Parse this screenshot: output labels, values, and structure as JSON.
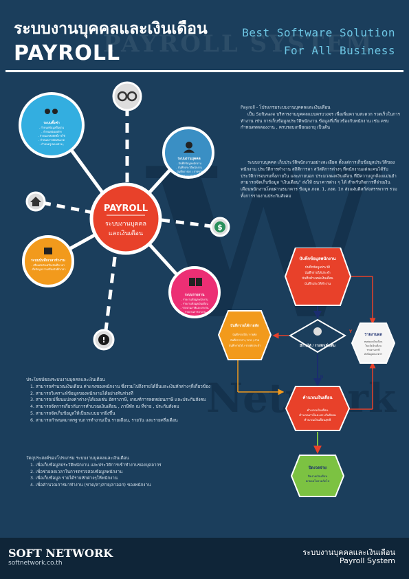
{
  "header": {
    "title_th": "ระบบงานบุคคลและเงินเดือน",
    "title_en": "PAYROLL",
    "bg_watermark": "PAYROLL SYSTEM",
    "tagline_1": "Best Software Solution",
    "tagline_2": "For All Business"
  },
  "watermark": {
    "letter": "W",
    "word": "Network"
  },
  "hub": {
    "title": "PAYROLL",
    "subtitle_line1": "ระบบงานบุคคล",
    "subtitle_line2": "และเงินเดือน"
  },
  "nodes": [
    {
      "id": "settings",
      "color": "#33aee0",
      "heading": "ระบบตั้งค่า",
      "lines": [
        "- กำหนดข้อมูลพื้นฐาน",
        "- กำหนดผังองค์กร",
        "- กำหนดรหัสสิทธิ์การใช้",
        "- กำหนดการตัดเงินงวด",
        "- กำหนดรูปแบบต่างๆ"
      ]
    },
    {
      "id": "employee",
      "color": "#3a8fc4",
      "heading": "ระบบงานบุคคล",
      "lines": [
        "- บันทึกข้อมูลพนักงาน",
        "- บันทึกประวัติพนักงาน",
        "- บันทึกการลา / การขาด",
        "- ค่าตอบแทนพิเศษ"
      ]
    },
    {
      "id": "time",
      "color": "#f29a1c",
      "heading": "ระบบบันทึกเวลาทำงาน",
      "lines": [
        "- เชื่อมต่อกับเครื่องบันทึกเวลา",
        "- ดึงข้อมูลจากเครื่องบันทึกเวลา"
      ]
    },
    {
      "id": "report",
      "color": "#ec2f74",
      "heading": "ระบบรายงาน",
      "lines": [
        "- รายงานข้อมูลพนักงาน",
        "- รายงานข้อมูลเงินเดือน",
        "- รายงานภาษีและประกัน",
        "- รายงานการลางาน"
      ]
    }
  ],
  "text": {
    "intro_title": "Payroll - โปรแกรมระบบงานบุคคลและเงินเดือน",
    "intro_body": "เป็น Software บริหารงานบุคคลแบบครบวงจร เพื่อเพิ่มความสะดวก รวดเร็วในการทำงาน เช่น การเก็บข้อมูลประวัติพนักงาน ข้อมูลที่เกี่ยวข้องกับพนักงาน เช่น ครบกำหนดทดลองงาน , ครบรอบเกษียณอายุ เป็นต้น",
    "para2": "ระบบงานบุคคล เก็บประวัติพนักงานอย่างละเอียด ตั้งแต่การเก็บข้อมูลประวัติของพนักงาน ประวัติการทำงาน สถิติการลา สวัสดิการต่างๆ ที่พนักงานแต่ละคนได้รับ ประวัติการอบรมทั้งภายใน และภายนอก ประมวลผลเงินเดือน ที่มีความถูกต้องแม่นยำ สามารถจัดเก็บข้อมูล \"เงินเดือน\" ส่งให้ ธนาคารต่าง ๆ ได้ สำหรับกิจการที่จ่ายเงินเดือนพนักงานโดยผ่านธนาคาร ข้อมูล ภงด. 1, ภงด. 1ก ส่งแผ่นดิสก์ส่งสรรพากร รวมทั้งการรายงานประกันสังคม",
    "benefits_title": "ประโยชน์ของระบบงานบุคคลและเงินเดือน",
    "benefits": [
      "สามารถคำนวณเงินเดือน ค่าแรงของพนักงาน ซึ่งรวมไปถึงรายได้อื่นและเงินหักต่างๆที่เกี่ยวข้อง",
      "สามารถวิเคราะห์ข้อมูลของพนักงานได้อย่างทันท่วงที",
      "สามารถเปลี่ยนแปลงค่าต่างๆได้เองเช่น อัตราภาษี, เกณฑ์การลดหย่อนภาษี และประกันสังคม",
      "สามารถจัดการเกี่ยวกับการคำนวณเงินเดือน , ภาษีหัก ณ ที่จ่าย , ประกันสังคม",
      "สามารถจัดเก็บข้อมูลให้เป็นระบบมากยิ่งขึ้น",
      "สามารถกำหนดมาตรฐานการทำงานเป็น รายเดือน, รายวัน และรายครึ่งเดือน"
    ],
    "objectives_title": "วัตถุประสงค์ของโปรแกรม ระบบงานบุคคลและเงินเดือน",
    "objectives": [
      "เพื่อเก็บข้อมูลประวัติพนักงาน และประวัติการเข้าทำงานของบุคลากร",
      "เพื่อช่วยลดเวลาในการตรวจสอบข้อมูลพนักงาน",
      "เพื่อเก็บข้อมูล รายได้รายหักต่างๆให้พนักงาน",
      "เพื่อคำนวณการมาทำงาน (ขาด/ลา/สาย/ลาออก) ของพนักงาน"
    ]
  },
  "flow": {
    "record": {
      "heading": "บันทึกข้อมูลพนักงาน",
      "lines": [
        "บันทึกข้อมูลประวัติ",
        "บันทึกรายได้ประจำ",
        "บันทึกตำแหน่งเงินเดือน",
        "บันทึกประวัติทำงาน"
      ]
    },
    "income": {
      "heading": "บันทึกรายได้รายหัก",
      "lines": [
        "บันทึกรายได้ / รายหัก",
        "บันทึกการลา / ขาด / สาย",
        "บันทึกรายได้ / รายหักประจำ"
      ]
    },
    "decision": {
      "label": "มีรายได้ / รายหักเพิ่มเติม",
      "yes": "Y",
      "no": "N"
    },
    "calc": {
      "heading": "คำนวณเงินเดือน",
      "lines": [
        "คำนวณเงินเดือน",
        "คำนวณภาษีและประกันสังคม",
        "คำนวณเงินเดือนสุทธิ"
      ]
    },
    "reports": {
      "heading": "รายงานผล",
      "lines": [
        "สรุปยอดเงินเดือน",
        "ใบแจ้งเงินเดือน",
        "รายงานภาษี",
        "ส่งข้อมูลธนาคาร"
      ]
    },
    "close": {
      "heading": "ปิดงวดจ่าย",
      "lines": [
        "ปิดงวดเงินเดือน",
        "ยกยอดไปงวดถัดไป"
      ]
    }
  },
  "footer": {
    "brand": "SOFT NETWORK",
    "url": "softnetwork.co.th",
    "title_th": "ระบบงานบุคคลและเงินเดือน",
    "title_en": "Payroll System"
  },
  "colors": {
    "background": "#1b3e5c",
    "hub": "#e8412a",
    "accent_cyan": "#6dc6e4",
    "flow_red": "#e8412a",
    "flow_orange": "#f29a1c",
    "flow_green": "#7cc242"
  },
  "icons": [
    "gear-icon",
    "person-icon",
    "home-icon",
    "dollar-icon",
    "document-icon",
    "alert-icon",
    "clock-icon",
    "pencil-icon",
    "money-icon",
    "hand-icon"
  ]
}
